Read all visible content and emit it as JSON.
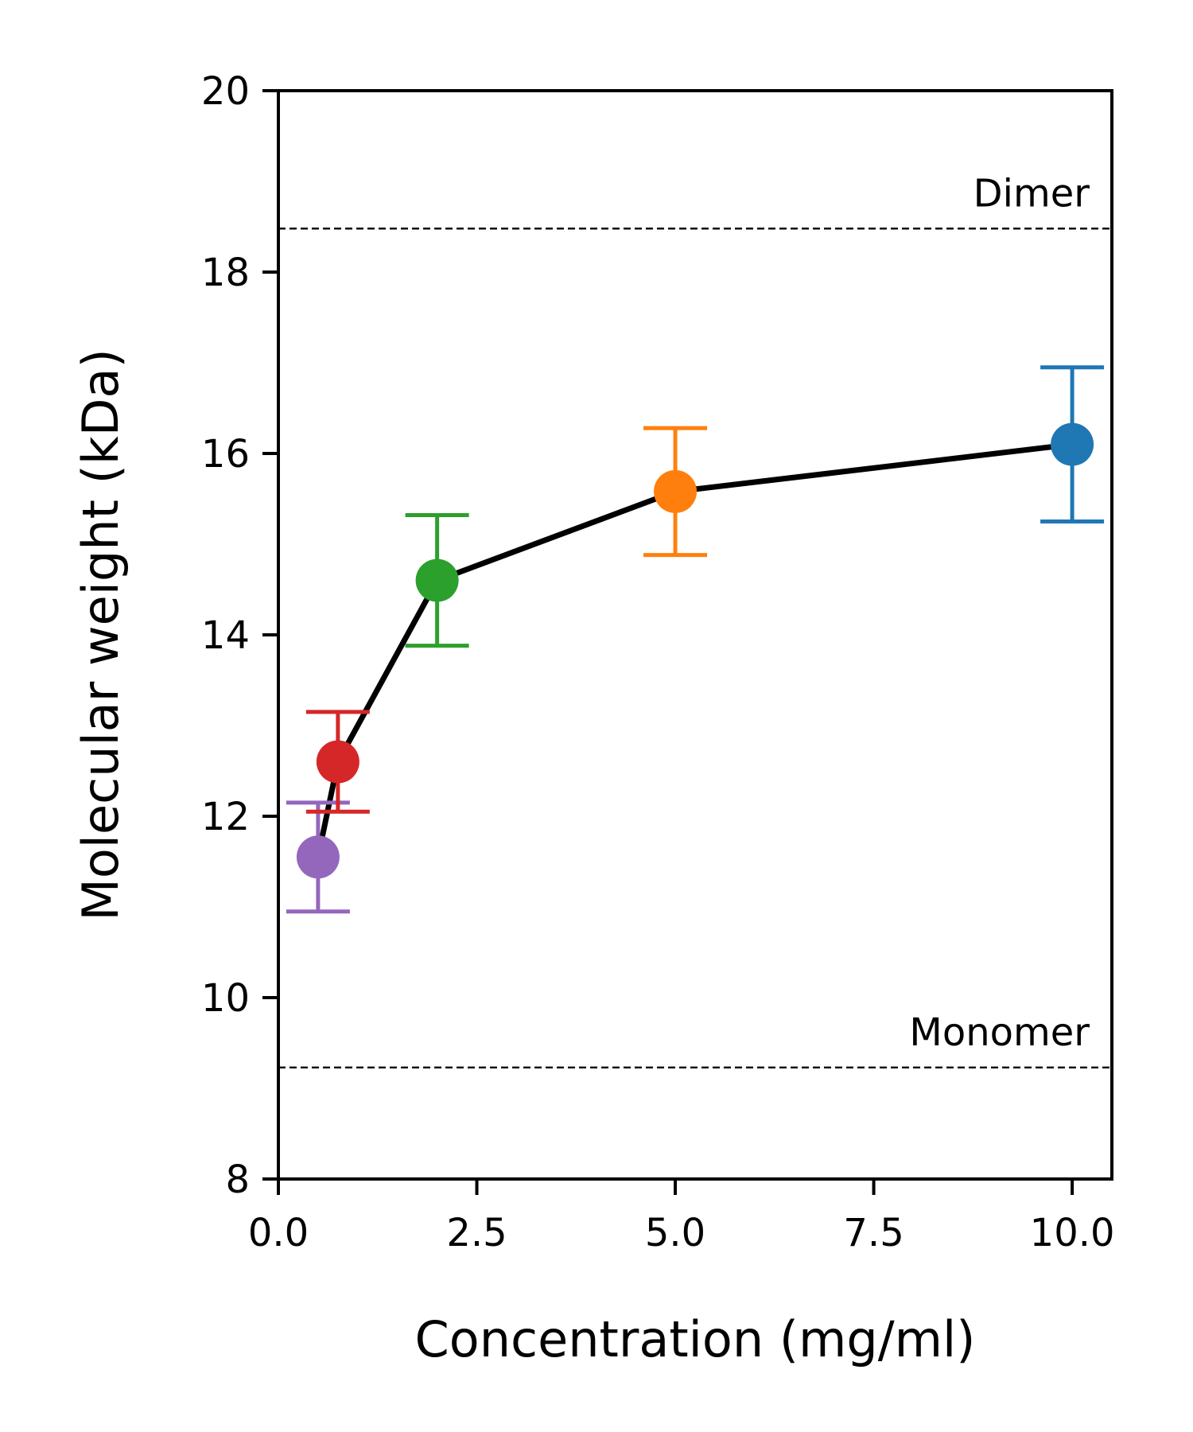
{
  "chart_data": {
    "type": "line",
    "xlabel": "Concentration (mg/ml)",
    "ylabel": "Molecular weight (kDa)",
    "xlim": [
      0,
      10.5
    ],
    "ylim": [
      8,
      20
    ],
    "xticks": [
      "0.0",
      "2.5",
      "5.0",
      "7.5",
      "10.0"
    ],
    "xtick_values": [
      0,
      2.5,
      5,
      7.5,
      10
    ],
    "yticks": [
      "8",
      "10",
      "12",
      "14",
      "16",
      "18",
      "20"
    ],
    "ytick_values": [
      8,
      10,
      12,
      14,
      16,
      18,
      20
    ],
    "grid": false,
    "line_color": "#000000",
    "points": [
      {
        "x": 0.5,
        "y": 11.55,
        "err": 0.6,
        "color": "#9467bd"
      },
      {
        "x": 0.75,
        "y": 12.6,
        "err": 0.55,
        "color": "#d62728"
      },
      {
        "x": 2.0,
        "y": 14.6,
        "err": 0.72,
        "color": "#2ca02c"
      },
      {
        "x": 5.0,
        "y": 15.58,
        "err": 0.7,
        "color": "#ff7f0e"
      },
      {
        "x": 10.0,
        "y": 16.1,
        "err": 0.85,
        "color": "#1f77b4"
      }
    ],
    "reference_lines": [
      {
        "label": "Dimer",
        "y": 18.48
      },
      {
        "label": "Monomer",
        "y": 9.23
      }
    ]
  }
}
